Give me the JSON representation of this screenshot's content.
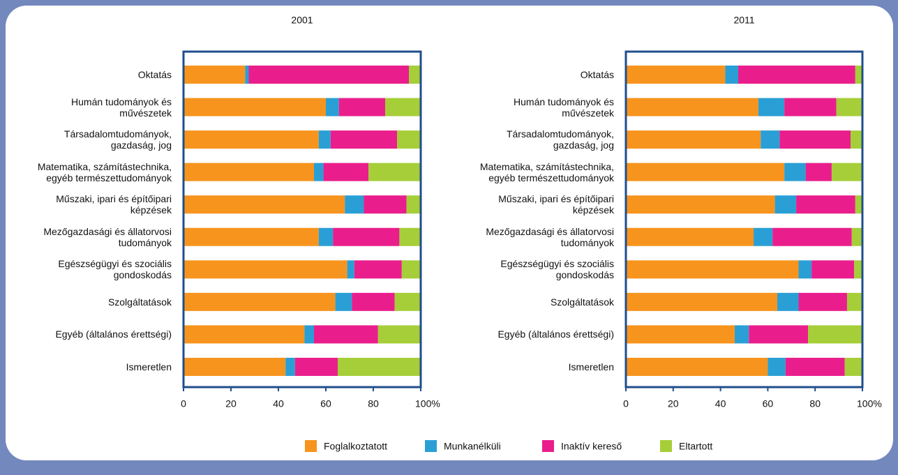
{
  "chart_data": [
    {
      "type": "stacked-bar-horizontal",
      "title": "2001",
      "categories": [
        "Oktatás",
        "Humán tudományok és\nművészetek",
        "Társadalomtudományok,\ngazdaság, jog",
        "Matematika, számítástechnika,\negyéb természettudományok",
        "Műszaki, ipari és építőipari\nképzések",
        "Mezőgazdasági és állatorvosi\ntudományok",
        "Egészségügyi és szociális\ngondoskodás",
        "Szolgáltatások",
        "Egyéb (általános érettségi)",
        "Ismeretlen"
      ],
      "series": [
        {
          "name": "Foglalkoztatott",
          "color": "#f7941d",
          "values": [
            26,
            60,
            57,
            55,
            68,
            57,
            69,
            64,
            51,
            43
          ]
        },
        {
          "name": "Munkanélküli",
          "color": "#2a9fd6",
          "values": [
            1.5,
            5.5,
            5,
            4,
            8,
            6,
            3,
            7,
            4,
            4
          ]
        },
        {
          "name": "Inaktív kereső",
          "color": "#e91e8c",
          "values": [
            67.5,
            19.5,
            28,
            19,
            18,
            28,
            20,
            18,
            27,
            18
          ]
        },
        {
          "name": "Eltartott",
          "color": "#a6ce39",
          "values": [
            5,
            15,
            10,
            22,
            6,
            9,
            8,
            11,
            18,
            35
          ]
        }
      ],
      "xlim": [
        0,
        100
      ],
      "xticks": [
        0,
        20,
        40,
        60,
        80,
        {
          "value": 100,
          "label": "100%"
        }
      ]
    },
    {
      "type": "stacked-bar-horizontal",
      "title": "2011",
      "categories": [
        "Oktatás",
        "Humán tudományok és\nművészetek",
        "Társadalomtudományok,\ngazdaság, jog",
        "Matematika, számítástechnika,\negyéb természettudományok",
        "Műszaki, ipari és építőipari\nképzések",
        "Mezőgazdasági és állatorvosi\ntudományok",
        "Egészségügyi és szociális\ngondoskodás",
        "Szolgáltatások",
        "Egyéb (általános érettségi)",
        "Ismeretlen"
      ],
      "series": [
        {
          "name": "Foglalkoztatott",
          "color": "#f7941d",
          "values": [
            42,
            56,
            57,
            67,
            63,
            54,
            73,
            64,
            46,
            60
          ]
        },
        {
          "name": "Munkanélküli",
          "color": "#2a9fd6",
          "values": [
            5.5,
            11,
            8,
            9,
            9,
            8,
            5.5,
            9,
            6,
            7.5
          ]
        },
        {
          "name": "Inaktív kereső",
          "color": "#e91e8c",
          "values": [
            49.5,
            22,
            30,
            11,
            25,
            33.5,
            18,
            20.5,
            25,
            25
          ]
        },
        {
          "name": "Eltartott",
          "color": "#a6ce39",
          "values": [
            3,
            11,
            5,
            13,
            3,
            4.5,
            3.5,
            6.5,
            23,
            7.5
          ]
        }
      ],
      "xlim": [
        0,
        100
      ],
      "xticks": [
        0,
        20,
        40,
        60,
        80,
        {
          "value": 100,
          "label": "100%"
        }
      ]
    }
  ]
}
